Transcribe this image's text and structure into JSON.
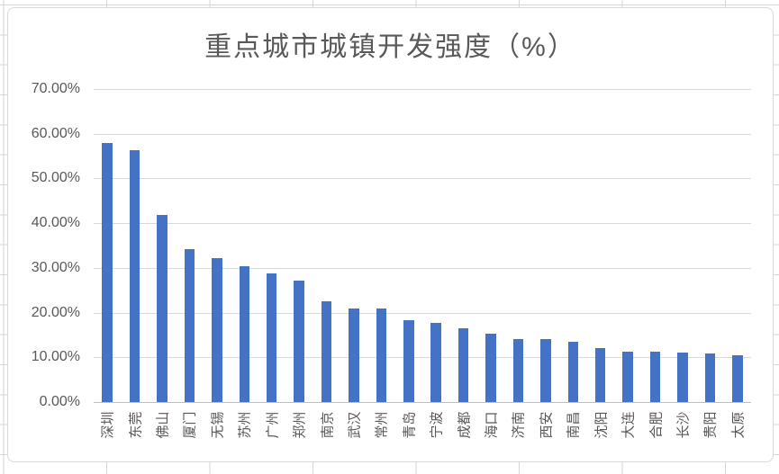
{
  "chart_data": {
    "type": "bar",
    "title": "重点城市城镇开发强度（%）",
    "xlabel": "",
    "ylabel": "",
    "categories": [
      "深圳",
      "东莞",
      "佛山",
      "厦门",
      "无锡",
      "苏州",
      "广州",
      "郑州",
      "南京",
      "武汉",
      "常州",
      "青岛",
      "宁波",
      "成都",
      "海口",
      "济南",
      "西安",
      "南昌",
      "沈阳",
      "大连",
      "合肥",
      "长沙",
      "贵阳",
      "太原"
    ],
    "values": [
      57.9,
      56.3,
      41.9,
      34.2,
      32.1,
      30.4,
      28.7,
      27.1,
      22.6,
      21.0,
      20.9,
      18.4,
      17.8,
      16.5,
      15.2,
      14.1,
      14.0,
      13.4,
      12.0,
      11.3,
      11.2,
      11.0,
      10.9,
      10.4
    ],
    "ylim": [
      0,
      70
    ],
    "ytick_labels": [
      "70.00%",
      "60.00%",
      "50.00%",
      "40.00%",
      "30.00%",
      "20.00%",
      "10.00%",
      "0.00%"
    ],
    "grid": true,
    "legend": "none"
  },
  "colors": {
    "bar": "#4472c4",
    "title_text": "#595959",
    "axis_text": "#595959",
    "gridline": "#d9d9d9",
    "axis_line": "#bfbfbf",
    "chart_border": "#d9d9d9",
    "chart_background": "#ffffff",
    "sheet_gridline": "#d6d6d6"
  }
}
